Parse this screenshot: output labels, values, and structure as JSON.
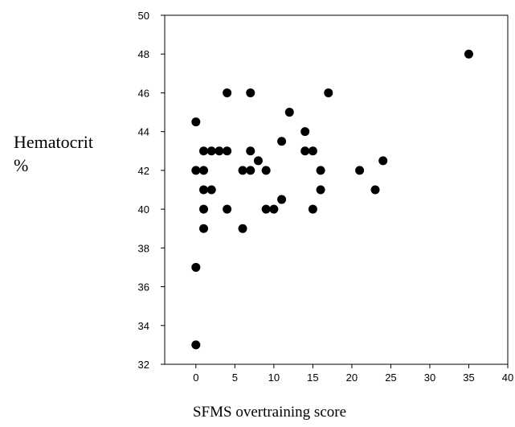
{
  "chart_data": {
    "type": "scatter",
    "title": "",
    "xlabel": "SFMS overtraining score",
    "ylabel_lines": [
      "Hematocrit",
      "%"
    ],
    "xlim": [
      -4,
      40
    ],
    "ylim": [
      32,
      50
    ],
    "x_ticks": [
      0,
      5,
      10,
      15,
      20,
      25,
      30,
      35,
      40
    ],
    "y_ticks": [
      32,
      34,
      36,
      38,
      40,
      42,
      44,
      46,
      48,
      50
    ],
    "grid": false,
    "legend": "none",
    "marker_color": "#000000",
    "points": [
      {
        "x": 0,
        "y": 44.5
      },
      {
        "x": 0,
        "y": 42
      },
      {
        "x": 0,
        "y": 37
      },
      {
        "x": 0,
        "y": 33
      },
      {
        "x": 1,
        "y": 43
      },
      {
        "x": 1,
        "y": 42
      },
      {
        "x": 1,
        "y": 41
      },
      {
        "x": 1,
        "y": 40
      },
      {
        "x": 1,
        "y": 39
      },
      {
        "x": 2,
        "y": 43
      },
      {
        "x": 2,
        "y": 41
      },
      {
        "x": 3,
        "y": 43
      },
      {
        "x": 4,
        "y": 46
      },
      {
        "x": 4,
        "y": 43
      },
      {
        "x": 4,
        "y": 40
      },
      {
        "x": 6,
        "y": 42
      },
      {
        "x": 6,
        "y": 39
      },
      {
        "x": 7,
        "y": 46
      },
      {
        "x": 7,
        "y": 43
      },
      {
        "x": 7,
        "y": 42
      },
      {
        "x": 8,
        "y": 42.5
      },
      {
        "x": 9,
        "y": 42
      },
      {
        "x": 9,
        "y": 40
      },
      {
        "x": 10,
        "y": 40
      },
      {
        "x": 11,
        "y": 43.5
      },
      {
        "x": 11,
        "y": 40.5
      },
      {
        "x": 12,
        "y": 45
      },
      {
        "x": 14,
        "y": 44
      },
      {
        "x": 14,
        "y": 43
      },
      {
        "x": 15,
        "y": 43
      },
      {
        "x": 15,
        "y": 40
      },
      {
        "x": 16,
        "y": 42
      },
      {
        "x": 16,
        "y": 41
      },
      {
        "x": 17,
        "y": 46
      },
      {
        "x": 21,
        "y": 42
      },
      {
        "x": 23,
        "y": 41
      },
      {
        "x": 24,
        "y": 42.5
      },
      {
        "x": 35,
        "y": 48
      }
    ]
  }
}
